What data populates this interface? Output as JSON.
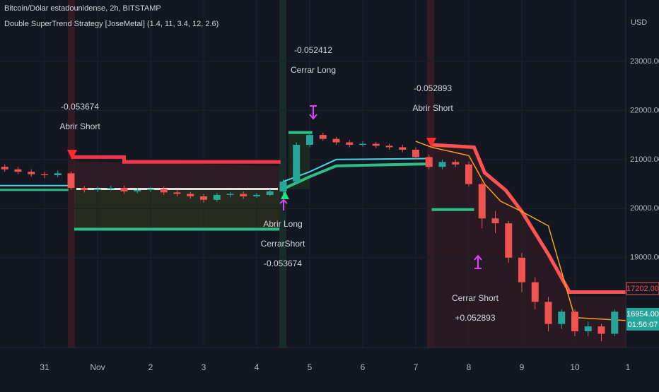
{
  "chart_data": {
    "type": "candlestick",
    "title": "Bitcoin/Dólar estadounidense, 2h, BITSTAMP",
    "subtitle": "Double SuperTrend Strategy [JoseMetal] (1.4, 11, 3.4, 12, 2.6)",
    "y_label": "USD",
    "xlim": [
      -0.84,
      10.96
    ],
    "xticks": [
      {
        "value": 0,
        "label": "31"
      },
      {
        "value": 1,
        "label": "Nov"
      },
      2,
      3,
      4,
      5,
      6,
      7,
      8,
      9,
      10,
      {
        "value": 11,
        "label": "1"
      }
    ],
    "ylim": [
      17170,
      24250
    ],
    "yticks": [
      {
        "value": 19000,
        "label": "19000.00"
      },
      {
        "value": 20000,
        "label": "20000.00"
      },
      {
        "value": 21000,
        "label": "21000.00"
      },
      {
        "value": 22000,
        "label": "22000.00"
      },
      {
        "value": 23000,
        "label": "23000.00"
      }
    ],
    "grid": true,
    "up_color": "#26a69a",
    "down_color": "#ef5350",
    "x": [
      -0.75,
      -0.5,
      -0.25,
      0,
      0.25,
      0.5,
      0.75,
      1,
      1.25,
      1.5,
      1.75,
      2,
      2.25,
      2.5,
      2.75,
      3,
      3.25,
      3.5,
      3.75,
      4,
      4.25,
      4.5,
      4.75,
      5,
      5.25,
      5.5,
      5.75,
      6,
      6.25,
      6.5,
      6.75,
      7,
      7.25,
      7.5,
      7.75,
      8,
      8.25,
      8.5,
      8.75,
      9,
      9.25,
      9.5,
      9.75,
      10,
      10.25,
      10.5,
      10.75
    ],
    "open": [
      20850,
      20800,
      20750,
      20700,
      20680,
      20720,
      20420,
      20380,
      20400,
      20420,
      20350,
      20380,
      20400,
      20330,
      20300,
      20250,
      20180,
      20280,
      20300,
      20250,
      20280,
      20350,
      20550,
      21300,
      21500,
      21420,
      21350,
      21300,
      21320,
      21280,
      21250,
      21200,
      21050,
      20850,
      20950,
      20900,
      20500,
      19800,
      19700,
      19000,
      18500,
      18100,
      17650,
      17900,
      17500,
      17600,
      17450
    ],
    "high": [
      20900,
      20850,
      20800,
      20750,
      20780,
      20760,
      20460,
      20450,
      20470,
      20470,
      20420,
      20440,
      20450,
      20380,
      20340,
      20300,
      20320,
      20340,
      20350,
      20320,
      20400,
      20600,
      21350,
      21560,
      21550,
      21460,
      21400,
      21370,
      21360,
      21320,
      21300,
      21250,
      21100,
      21000,
      21000,
      20960,
      20550,
      19950,
      19750,
      19100,
      18600,
      18200,
      17950,
      17950,
      17700,
      17650,
      17950
    ],
    "low": [
      20750,
      20700,
      20650,
      20620,
      20640,
      20380,
      20330,
      20340,
      20360,
      20300,
      20310,
      20340,
      20280,
      20250,
      20200,
      20120,
      20140,
      20230,
      20200,
      20220,
      20250,
      20300,
      20500,
      21250,
      21380,
      21300,
      21250,
      21260,
      21230,
      21200,
      21150,
      21000,
      20800,
      20800,
      20850,
      20450,
      19600,
      19500,
      18900,
      18300,
      17950,
      17500,
      17550,
      17400,
      17400,
      17300,
      17400
    ],
    "close": [
      20800,
      20750,
      20700,
      20680,
      20720,
      20420,
      20380,
      20400,
      20420,
      20350,
      20380,
      20400,
      20330,
      20300,
      20250,
      20180,
      20280,
      20300,
      20250,
      20280,
      20350,
      20550,
      21300,
      21500,
      21420,
      21350,
      21300,
      21320,
      21280,
      21250,
      21200,
      21050,
      20850,
      20950,
      20900,
      20500,
      19800,
      19700,
      19000,
      18500,
      18100,
      17650,
      17900,
      17500,
      17600,
      17450,
      17900
    ],
    "series": [
      {
        "color": "#f23645",
        "width": 5,
        "x": [
          0.5,
          1.5,
          1.5,
          4.45
        ],
        "values": [
          21050,
          21050,
          20950,
          20950
        ]
      },
      {
        "color": "#ff5252",
        "width": 5,
        "x": [
          7.3,
          8.1,
          8.3,
          8.7,
          9.0,
          9.5,
          9.9,
          10.96
        ],
        "values": [
          21300,
          21250,
          20730,
          20370,
          19940,
          19070,
          18300,
          18300
        ]
      },
      {
        "color": "#2ebd85",
        "width": 3,
        "x": [
          -0.84,
          0.45
        ],
        "values": [
          20380,
          20380
        ]
      },
      {
        "color": "#2ebd85",
        "width": 4,
        "x": [
          4.5,
          5,
          5.5,
          7.2
        ],
        "values": [
          20400,
          20650,
          20870,
          20910
        ]
      },
      {
        "color": "#2ebd85",
        "width": 4,
        "x": [
          0.56,
          4.43
        ],
        "values": [
          19580,
          19580
        ]
      },
      {
        "color": "#2ebd85",
        "width": 4,
        "x": [
          4.6,
          5.05
        ],
        "values": [
          21550,
          21550
        ]
      },
      {
        "color": "#2ebd85",
        "width": 4,
        "x": [
          7.3,
          8.1
        ],
        "values": [
          19980,
          19980
        ]
      },
      {
        "color": "#f7a21b",
        "width": 1.5,
        "x": [
          7,
          7.3,
          8,
          8.3,
          8.6,
          9,
          9.5,
          10,
          10.96
        ],
        "values": [
          21370,
          21250,
          21080,
          20500,
          20150,
          19940,
          19650,
          17780,
          17720
        ]
      },
      {
        "color": "#e0e0e0",
        "width": 3,
        "x": [
          0.6,
          4.4
        ],
        "values": [
          20400,
          20400
        ]
      },
      {
        "color": "#4dd0e1",
        "width": 2,
        "x": [
          -0.84,
          0.45
        ],
        "values": [
          20470,
          20470
        ]
      },
      {
        "color": "#4dd0e1",
        "width": 2,
        "x": [
          4.5,
          5,
          5.5,
          7.2
        ],
        "values": [
          20550,
          20750,
          21000,
          21020
        ]
      }
    ],
    "annotations": [
      {
        "lines": [
          "-0.053674",
          "Abrir Short"
        ]
      },
      {
        "lines": [
          "-0.052412",
          "Cerrar Long"
        ]
      },
      {
        "lines": [
          "-0.052893",
          "Abrir Short"
        ]
      },
      {
        "lines": [
          "Abrir Long",
          "CerrarShort",
          "-0.053674"
        ]
      },
      {
        "lines": [
          "Cerrar Short",
          "+0.052893"
        ]
      }
    ],
    "price_labels": [
      "17202.00",
      "16954.00",
      "01:56:07"
    ]
  }
}
